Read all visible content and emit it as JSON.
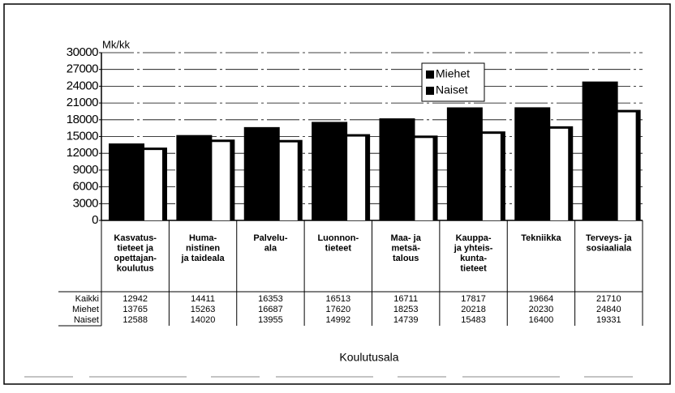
{
  "chart_data": {
    "type": "bar",
    "y_label": "Mk/kk",
    "x_label": "Koulutusala",
    "categories": [
      [
        "Kasvatus-",
        "tieteet ja",
        "opettajan-",
        "koulutus"
      ],
      [
        "Huma-",
        "nistinen",
        "ja taideala"
      ],
      [
        "Palvelu-",
        "ala"
      ],
      [
        "Luonnon-",
        "tieteet"
      ],
      [
        "Maa- ja",
        "metsä-",
        "talous"
      ],
      [
        "Kauppa-",
        "ja yhteis-",
        "kunta-",
        "tieteet"
      ],
      [
        "Tekniikka"
      ],
      [
        "Terveys- ja",
        "sosiaaliala"
      ]
    ],
    "series": [
      {
        "name": "Miehet",
        "color": "#000000",
        "values": [
          13765,
          15263,
          16687,
          17620,
          18253,
          20218,
          20230,
          24840
        ]
      },
      {
        "name": "Naiset",
        "color": "#ffffff",
        "values": [
          12588,
          14020,
          13955,
          14992,
          14739,
          15483,
          16400,
          19331
        ]
      }
    ],
    "summary_row": {
      "name": "Kaikki",
      "values": [
        12942,
        14411,
        16353,
        16513,
        16711,
        17817,
        19664,
        21710
      ]
    },
    "ylim": [
      0,
      30000
    ],
    "yticks": [
      0,
      3000,
      6000,
      9000,
      12000,
      15000,
      18000,
      21000,
      24000,
      27000,
      30000
    ],
    "grid": true,
    "legend": "top-right"
  }
}
